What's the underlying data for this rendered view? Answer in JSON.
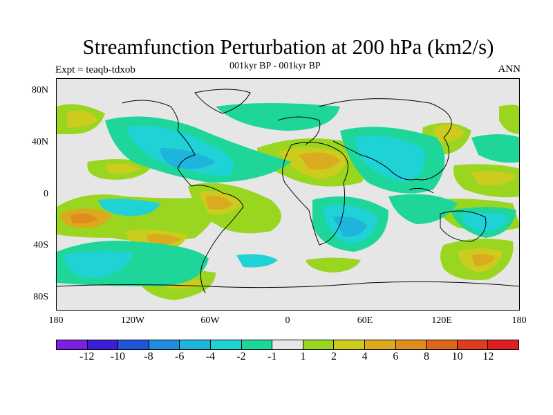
{
  "title": "Streamfunction Perturbation at 200 hPa (km2/s)",
  "subtitle": "001kyr BP - 001kyr BP",
  "expt_label": "Expt = teaqb-tdxob",
  "season": "ANN",
  "lat_labels": [
    "80N",
    "40N",
    "0",
    "40S",
    "80S"
  ],
  "lon_labels": [
    "180",
    "120W",
    "60W",
    "0",
    "60E",
    "120E",
    "180"
  ],
  "colorbar": {
    "colors": [
      "#7b1fe0",
      "#3a1fd6",
      "#1f55d6",
      "#1f8ce0",
      "#1fb4dc",
      "#1fd2d6",
      "#1fd69a",
      "#e6e6e6",
      "#9ad61f",
      "#cccc1f",
      "#dcaa1f",
      "#e08c1f",
      "#dc641f",
      "#dc3c1f",
      "#dc1f1f"
    ],
    "labels": [
      "-12",
      "-10",
      "-8",
      "-6",
      "-4",
      "-2",
      "-1",
      "1",
      "2",
      "4",
      "6",
      "8",
      "10",
      "12"
    ]
  },
  "map": {
    "background": "#e6e6e6",
    "coast_color": "#000000"
  }
}
